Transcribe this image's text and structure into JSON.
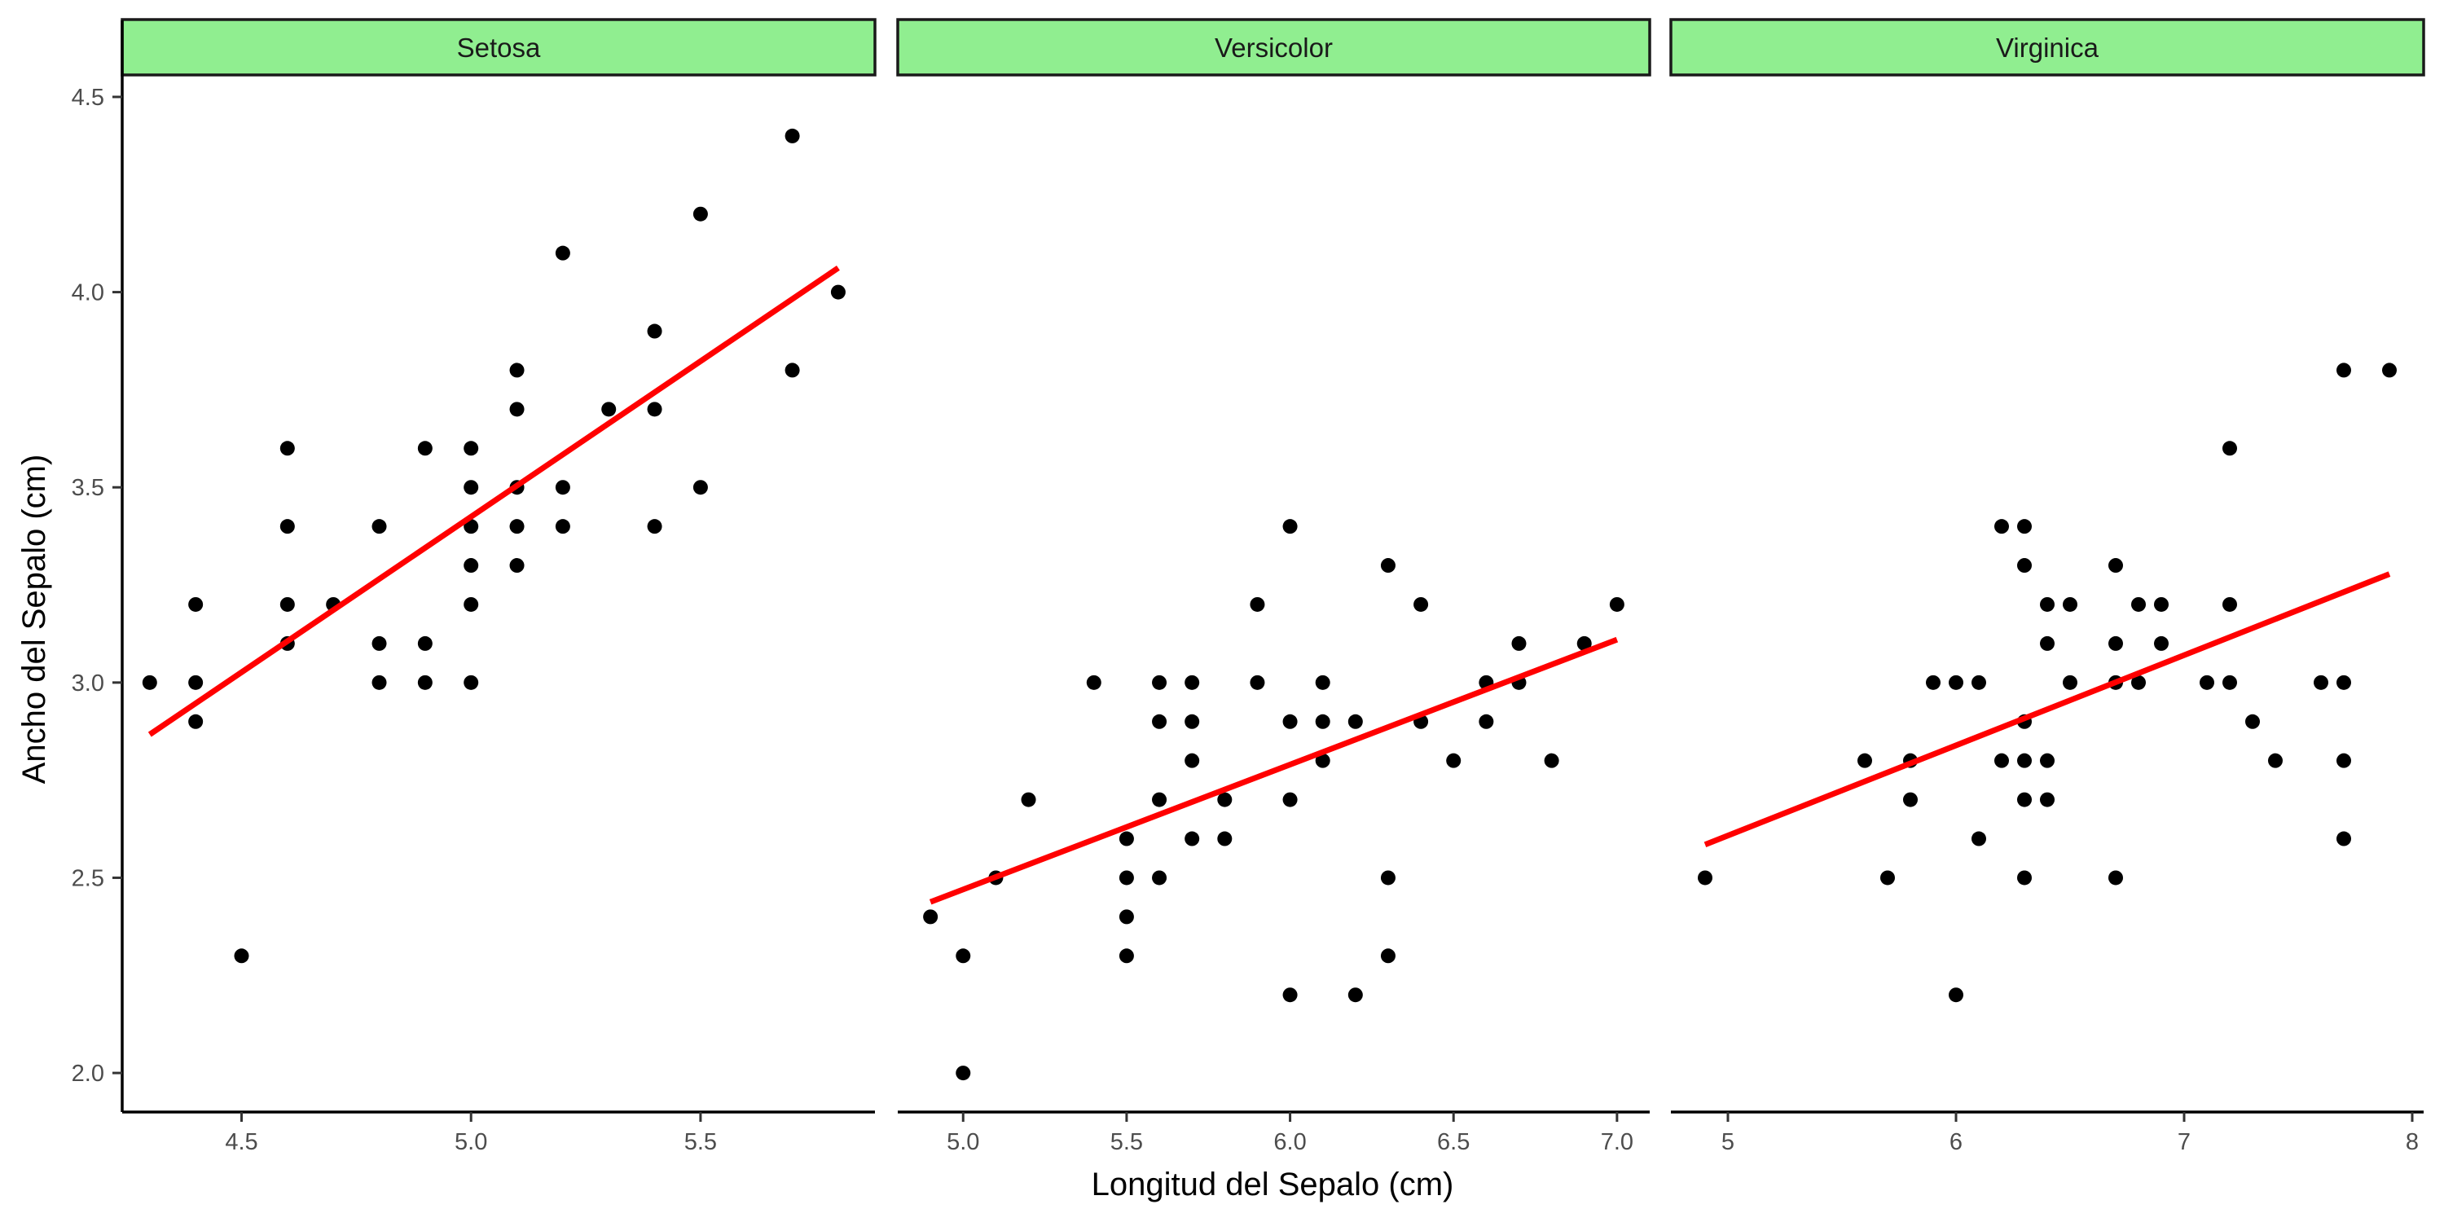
{
  "chart_data": {
    "type": "scatter",
    "xlabel": "Longitud del Sepalo (cm)",
    "ylabel": "Ancho del Sepalo (cm)",
    "ylim": [
      1.9,
      4.55
    ],
    "y_ticks": [
      "2.0",
      "2.5",
      "3.0",
      "3.5",
      "4.0",
      "4.5"
    ],
    "grid": false,
    "strip_color": "#90EE90",
    "point_color": "#000000",
    "line_color": "#FF0000",
    "panels": [
      {
        "name": "Setosa",
        "xlim": [
          4.24,
          5.88
        ],
        "x_ticks": [
          "4.5",
          "5.0",
          "5.5"
        ],
        "points": [
          [
            4.3,
            3.0
          ],
          [
            4.4,
            3.2
          ],
          [
            4.4,
            3.0
          ],
          [
            4.4,
            2.9
          ],
          [
            4.5,
            2.3
          ],
          [
            4.6,
            3.6
          ],
          [
            4.6,
            3.4
          ],
          [
            4.6,
            3.2
          ],
          [
            4.6,
            3.1
          ],
          [
            4.7,
            3.2
          ],
          [
            4.8,
            3.4
          ],
          [
            4.8,
            3.1
          ],
          [
            4.8,
            3.0
          ],
          [
            4.9,
            3.6
          ],
          [
            4.9,
            3.1
          ],
          [
            4.9,
            3.0
          ],
          [
            5.0,
            3.6
          ],
          [
            5.0,
            3.5
          ],
          [
            5.0,
            3.4
          ],
          [
            5.0,
            3.3
          ],
          [
            5.0,
            3.2
          ],
          [
            5.0,
            3.0
          ],
          [
            5.1,
            3.8
          ],
          [
            5.1,
            3.7
          ],
          [
            5.1,
            3.5
          ],
          [
            5.1,
            3.4
          ],
          [
            5.1,
            3.3
          ],
          [
            5.2,
            4.1
          ],
          [
            5.2,
            3.5
          ],
          [
            5.2,
            3.4
          ],
          [
            5.3,
            3.7
          ],
          [
            5.4,
            3.9
          ],
          [
            5.4,
            3.7
          ],
          [
            5.4,
            3.4
          ],
          [
            5.5,
            4.2
          ],
          [
            5.5,
            3.5
          ],
          [
            5.7,
            4.4
          ],
          [
            5.7,
            3.8
          ],
          [
            5.8,
            4.0
          ]
        ],
        "fit": [
          [
            4.3,
            2.867
          ],
          [
            5.8,
            4.062
          ]
        ]
      },
      {
        "name": "Versicolor",
        "xlim": [
          4.8,
          7.1
        ],
        "x_ticks": [
          "5.0",
          "5.5",
          "6.0",
          "6.5",
          "7.0"
        ],
        "points": [
          [
            4.9,
            2.4
          ],
          [
            5.0,
            2.3
          ],
          [
            5.0,
            2.0
          ],
          [
            5.1,
            2.5
          ],
          [
            5.2,
            2.7
          ],
          [
            5.4,
            3.0
          ],
          [
            5.5,
            2.6
          ],
          [
            5.5,
            2.5
          ],
          [
            5.5,
            2.4
          ],
          [
            5.5,
            2.3
          ],
          [
            5.6,
            3.0
          ],
          [
            5.6,
            2.9
          ],
          [
            5.6,
            2.7
          ],
          [
            5.6,
            2.5
          ],
          [
            5.7,
            3.0
          ],
          [
            5.7,
            2.9
          ],
          [
            5.7,
            2.8
          ],
          [
            5.7,
            2.6
          ],
          [
            5.8,
            2.7
          ],
          [
            5.8,
            2.6
          ],
          [
            5.9,
            3.2
          ],
          [
            5.9,
            3.0
          ],
          [
            6.0,
            3.4
          ],
          [
            6.0,
            2.9
          ],
          [
            6.0,
            2.7
          ],
          [
            6.0,
            2.2
          ],
          [
            6.1,
            3.0
          ],
          [
            6.1,
            2.9
          ],
          [
            6.1,
            2.8
          ],
          [
            6.2,
            2.9
          ],
          [
            6.2,
            2.2
          ],
          [
            6.3,
            3.3
          ],
          [
            6.3,
            2.5
          ],
          [
            6.3,
            2.3
          ],
          [
            6.4,
            3.2
          ],
          [
            6.4,
            2.9
          ],
          [
            6.5,
            2.8
          ],
          [
            6.6,
            3.0
          ],
          [
            6.6,
            2.9
          ],
          [
            6.7,
            3.1
          ],
          [
            6.7,
            3.0
          ],
          [
            6.8,
            2.8
          ],
          [
            6.9,
            3.1
          ],
          [
            7.0,
            3.2
          ]
        ],
        "fit": [
          [
            4.9,
            2.438
          ],
          [
            7.0,
            3.11
          ]
        ]
      },
      {
        "name": "Virginica",
        "xlim": [
          4.75,
          8.05
        ],
        "x_ticks": [
          "5",
          "6",
          "7",
          "8"
        ],
        "points": [
          [
            4.9,
            2.5
          ],
          [
            5.6,
            2.8
          ],
          [
            5.7,
            2.5
          ],
          [
            5.8,
            2.8
          ],
          [
            5.8,
            2.7
          ],
          [
            5.9,
            3.0
          ],
          [
            6.0,
            3.0
          ],
          [
            6.0,
            2.2
          ],
          [
            6.1,
            3.0
          ],
          [
            6.1,
            2.6
          ],
          [
            6.2,
            3.4
          ],
          [
            6.2,
            2.8
          ],
          [
            6.3,
            3.4
          ],
          [
            6.3,
            3.3
          ],
          [
            6.3,
            2.9
          ],
          [
            6.3,
            2.8
          ],
          [
            6.3,
            2.7
          ],
          [
            6.3,
            2.5
          ],
          [
            6.4,
            3.2
          ],
          [
            6.4,
            3.1
          ],
          [
            6.4,
            2.8
          ],
          [
            6.4,
            2.7
          ],
          [
            6.5,
            3.2
          ],
          [
            6.5,
            3.0
          ],
          [
            6.7,
            3.3
          ],
          [
            6.7,
            3.1
          ],
          [
            6.7,
            3.0
          ],
          [
            6.7,
            2.5
          ],
          [
            6.8,
            3.2
          ],
          [
            6.8,
            3.0
          ],
          [
            6.9,
            3.2
          ],
          [
            6.9,
            3.1
          ],
          [
            7.1,
            3.0
          ],
          [
            7.2,
            3.6
          ],
          [
            7.2,
            3.2
          ],
          [
            7.2,
            3.0
          ],
          [
            7.3,
            2.9
          ],
          [
            7.4,
            2.8
          ],
          [
            7.6,
            3.0
          ],
          [
            7.7,
            3.8
          ],
          [
            7.7,
            3.0
          ],
          [
            7.7,
            2.8
          ],
          [
            7.7,
            2.6
          ],
          [
            7.9,
            3.8
          ]
        ],
        "fit": [
          [
            4.9,
            2.585
          ],
          [
            7.9,
            3.278
          ]
        ]
      }
    ]
  }
}
